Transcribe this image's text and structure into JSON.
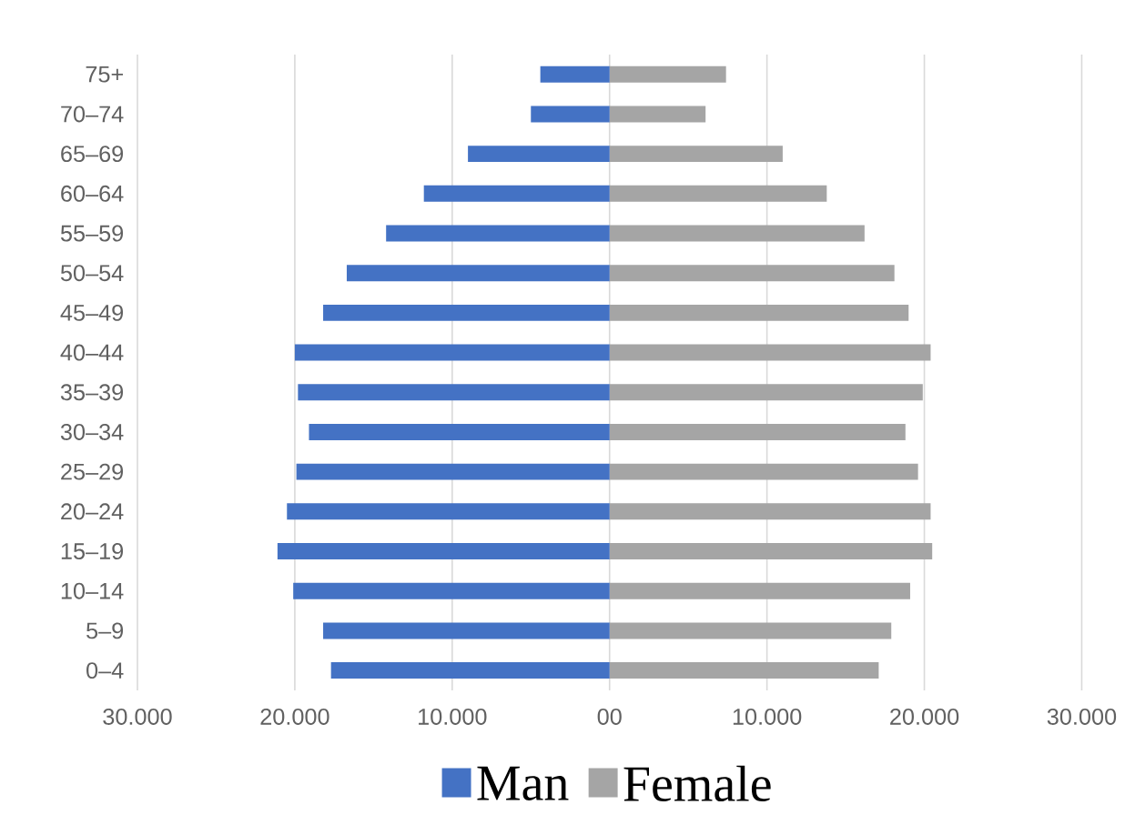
{
  "chart_data": {
    "type": "bar",
    "orientation": "horizontal",
    "categories": [
      "75+",
      "70–74",
      "65–69",
      "60–64",
      "55–59",
      "50–54",
      "45–49",
      "40–44",
      "35–39",
      "30–34",
      "25–29",
      "20–24",
      "15–19",
      "10–14",
      "5–9",
      "0–4"
    ],
    "series": [
      {
        "name": "Man",
        "color": "#4472c4",
        "values": [
          -4400,
          -5000,
          -9000,
          -11800,
          -14200,
          -16700,
          -18200,
          -20000,
          -19800,
          -19100,
          -19900,
          -20500,
          -21100,
          -20100,
          -18200,
          -17700
        ]
      },
      {
        "name": "Female",
        "color": "#a5a5a5",
        "values": [
          7400,
          6100,
          11000,
          13800,
          16200,
          18100,
          19000,
          20400,
          19900,
          18800,
          19600,
          20400,
          20500,
          19100,
          17900,
          17100
        ]
      }
    ],
    "xlim": [
      -30000,
      30000
    ],
    "xticks": [
      {
        "value": -30000,
        "label": "30.000"
      },
      {
        "value": -20000,
        "label": "20.000"
      },
      {
        "value": -10000,
        "label": "10.000"
      },
      {
        "value": 0,
        "label": "00"
      },
      {
        "value": 10000,
        "label": "10.000"
      },
      {
        "value": 20000,
        "label": "20.000"
      },
      {
        "value": 30000,
        "label": "30.000"
      }
    ],
    "stacked": true,
    "grid": "x",
    "legend": "bottom"
  }
}
